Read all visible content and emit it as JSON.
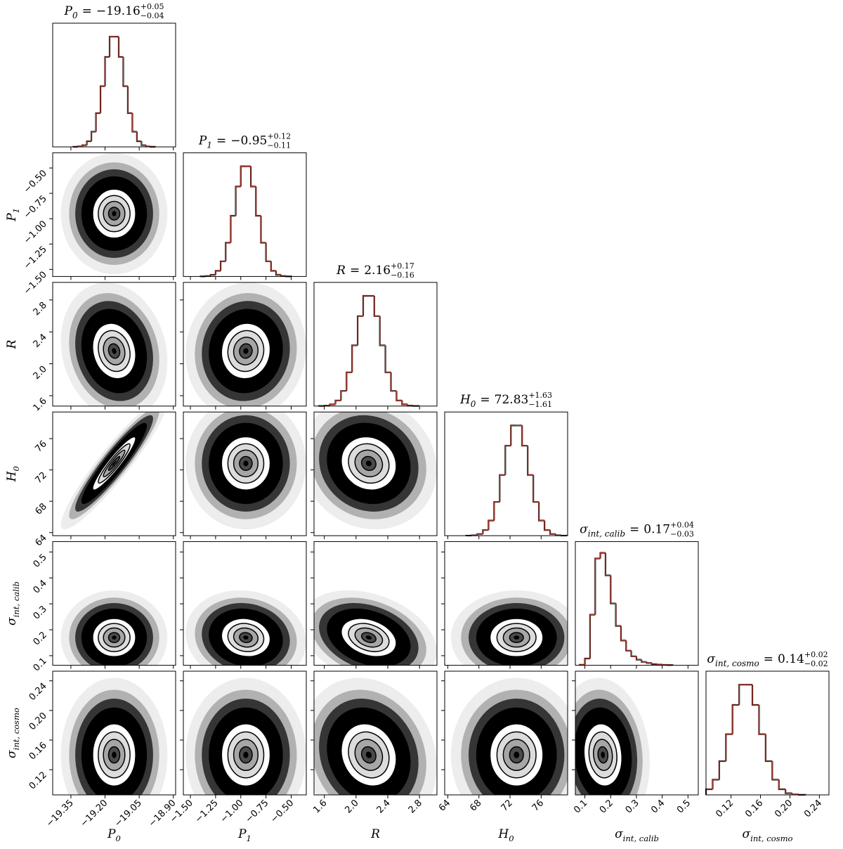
{
  "chart_data": {
    "type": "corner",
    "equals": "=",
    "hist_ylim": [
      0,
      110
    ],
    "params": [
      {
        "symbol": "P",
        "subscript": "0",
        "median": -19.16,
        "err_plus": 0.05,
        "err_minus": 0.04,
        "median_label": "−19.16",
        "plus_label": "+0.05",
        "minus_label": "−0.04",
        "lim": [
          -19.43,
          -18.89
        ],
        "ticks": [
          {
            "value": -19.35,
            "label": "−19.35"
          },
          {
            "value": -19.2,
            "label": "−19.20"
          },
          {
            "value": -19.05,
            "label": "−19.05"
          },
          {
            "value": -18.9,
            "label": "−18.90"
          }
        ],
        "bins": [
          -19.34,
          -19.32,
          -19.3,
          -19.28,
          -19.26,
          -19.24,
          -19.22,
          -19.2,
          -19.18,
          -19.16,
          -19.14,
          -19.12,
          -19.1,
          -19.08,
          -19.06,
          -19.04,
          -19.02,
          -19.0,
          -18.98
        ],
        "counts": [
          0.1,
          0.4,
          1.5,
          5,
          13.5,
          30,
          54,
          80,
          98,
          98,
          80,
          54,
          30,
          13.5,
          5,
          1.5,
          0.4,
          0.1
        ]
      },
      {
        "symbol": "P",
        "subscript": "1",
        "median": -0.95,
        "err_plus": 0.12,
        "err_minus": 0.11,
        "median_label": "−0.95",
        "plus_label": "+0.12",
        "minus_label": "−0.11",
        "lim": [
          -1.57,
          -0.35
        ],
        "ticks": [
          {
            "value": -1.5,
            "label": "−1.50"
          },
          {
            "value": -1.25,
            "label": "−1.25"
          },
          {
            "value": -1.0,
            "label": "−1.00"
          },
          {
            "value": -0.75,
            "label": "−0.75"
          },
          {
            "value": -0.5,
            "label": "−0.50"
          }
        ],
        "bins": [
          -1.4,
          -1.35,
          -1.3,
          -1.25,
          -1.2,
          -1.15,
          -1.1,
          -1.05,
          -1.0,
          -0.95,
          -0.9,
          -0.85,
          -0.8,
          -0.75,
          -0.7,
          -0.65,
          -0.6,
          -0.55,
          -0.5
        ],
        "counts": [
          0.1,
          0.4,
          1.5,
          5,
          13.5,
          30,
          54,
          80,
          98,
          98,
          80,
          54,
          30,
          13.5,
          5,
          1.5,
          0.4,
          0.1
        ]
      },
      {
        "symbol": "R",
        "median": 2.16,
        "err_plus": 0.17,
        "err_minus": 0.16,
        "median_label": "2.16",
        "plus_label": "+0.17",
        "minus_label": "−0.16",
        "lim": [
          1.47,
          3.02
        ],
        "ticks": [
          1.6,
          {
            "value": 2.0,
            "label": "2.0"
          },
          2.4,
          2.8
        ],
        "bins": [
          1.53,
          1.6,
          1.67,
          1.74,
          1.81,
          1.88,
          1.95,
          2.02,
          2.09,
          2.16,
          2.23,
          2.3,
          2.37,
          2.44,
          2.51,
          2.58,
          2.65,
          2.72,
          2.79
        ],
        "counts": [
          0.1,
          0.4,
          1.5,
          5,
          13.5,
          30,
          54,
          80,
          98,
          98,
          80,
          54,
          30,
          13.5,
          5,
          1.5,
          0.4,
          0.1
        ]
      },
      {
        "symbol": "H",
        "subscript": "0",
        "median": 72.83,
        "err_plus": 1.63,
        "err_minus": 1.61,
        "median_label": "72.83",
        "plus_label": "+1.63",
        "minus_label": "−1.61",
        "lim": [
          63.6,
          79.4
        ],
        "ticks": [
          64,
          68,
          72,
          76
        ],
        "bins": [
          66.35,
          67.07,
          67.79,
          68.51,
          69.23,
          69.95,
          70.67,
          71.39,
          72.11,
          72.83,
          73.55,
          74.27,
          74.99,
          75.71,
          76.43,
          77.15,
          77.87,
          78.59,
          79.31
        ],
        "counts": [
          0.1,
          0.4,
          1.5,
          5,
          13.5,
          30,
          54,
          80,
          98,
          98,
          80,
          54,
          30,
          13.5,
          5,
          1.5,
          0.4,
          0.1
        ]
      },
      {
        "symbol": "σ",
        "subscript": "int, calib",
        "median": 0.17,
        "err_plus": 0.04,
        "err_minus": 0.03,
        "median_label": "0.17",
        "plus_label": "+0.04",
        "minus_label": "−0.03",
        "lim": [
          0.063,
          0.54
        ],
        "ticks": [
          0.1,
          0.2,
          0.3,
          0.4,
          0.5
        ],
        "bins": [
          0.08,
          0.1,
          0.12,
          0.14,
          0.16,
          0.18,
          0.2,
          0.22,
          0.24,
          0.26,
          0.28,
          0.3,
          0.32,
          0.34,
          0.36,
          0.38,
          0.4,
          0.42,
          0.44
        ],
        "counts": [
          0.5,
          6,
          45,
          95,
          100,
          80,
          55,
          35,
          22,
          13,
          8,
          5,
          3,
          2,
          1,
          0.6,
          0.4,
          0.2
        ]
      },
      {
        "symbol": "σ",
        "subscript": "int, cosmo",
        "median": 0.14,
        "err_plus": 0.02,
        "err_minus": 0.02,
        "median_label": "0.14",
        "plus_label": "+0.02",
        "minus_label": "−0.02",
        "lim": [
          0.086,
          0.253
        ],
        "ticks": [
          0.12,
          0.16,
          {
            "value": 0.2,
            "label": "0.20"
          },
          0.24
        ],
        "bins": [
          0.086,
          0.095,
          0.104,
          0.113,
          0.122,
          0.131,
          0.14,
          0.149,
          0.158,
          0.167,
          0.176,
          0.185,
          0.194,
          0.203,
          0.212,
          0.221
        ],
        "counts": [
          5,
          13.5,
          30,
          54,
          80,
          98,
          98,
          80,
          54,
          30,
          13.5,
          5,
          1.5,
          0.4,
          0.1
        ]
      }
    ],
    "correlations": [
      [],
      [
        0.0
      ],
      [
        -0.15,
        0.05
      ],
      [
        0.93,
        0.0,
        -0.1
      ],
      [
        0.0,
        -0.1,
        -0.3,
        0.0
      ],
      [
        0.0,
        0.0,
        -0.15,
        0.0,
        -0.1
      ]
    ]
  }
}
